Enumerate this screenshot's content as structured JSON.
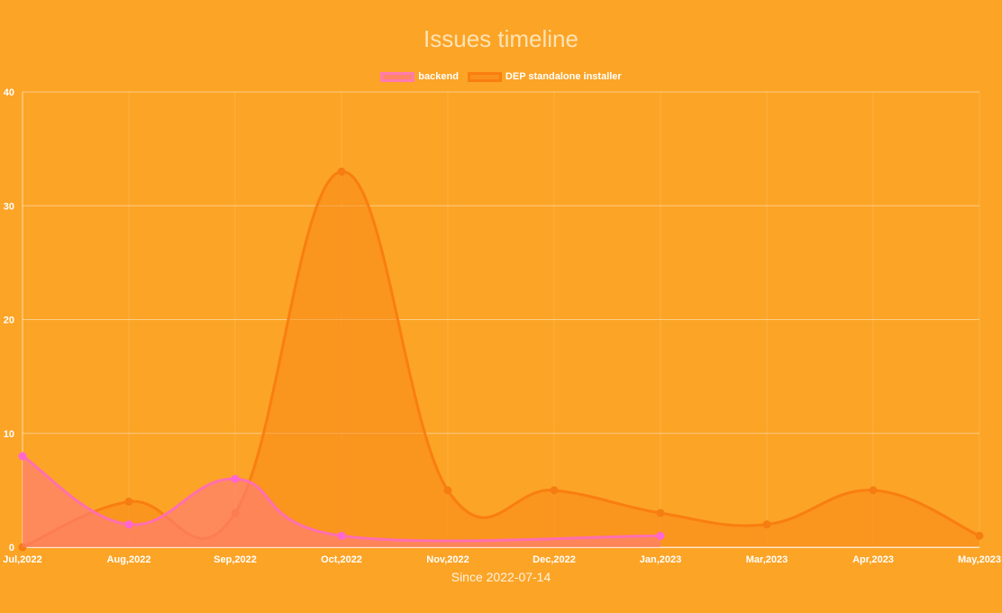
{
  "chart_data": {
    "type": "line",
    "title": "Issues timeline",
    "xlabel": "Since 2022-07-14",
    "ylabel": "",
    "categories": [
      "Jul,2022",
      "Aug,2022",
      "Sep,2022",
      "Oct,2022",
      "Nov,2022",
      "Dec,2022",
      "Jan,2023",
      "Mar,2023",
      "Apr,2023",
      "May,2023"
    ],
    "ylim": [
      0,
      40
    ],
    "yticks": [
      0,
      10,
      20,
      30,
      40
    ],
    "grid": true,
    "legend_position": "top-center",
    "series": [
      {
        "name": "backend",
        "values": [
          8,
          2,
          6,
          1,
          null,
          null,
          1,
          null,
          null,
          null
        ],
        "color": "#ff6fb0",
        "fill": "rgba(255,125,120,0.65)"
      },
      {
        "name": "DEP standalone installer",
        "values": [
          0,
          4,
          3,
          33,
          5,
          5,
          3,
          2,
          5,
          1
        ],
        "color": "#f97e10",
        "fill": "rgba(249,130,20,0.45)"
      }
    ]
  }
}
